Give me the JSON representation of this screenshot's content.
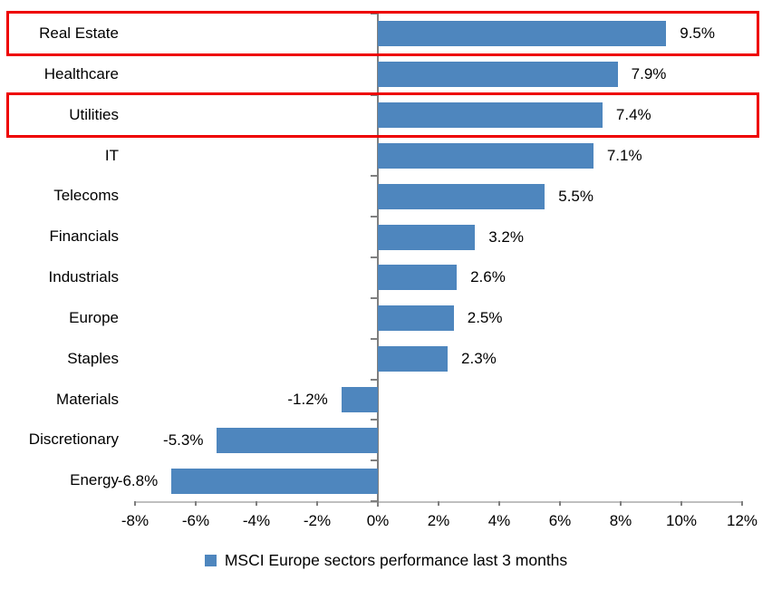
{
  "chart_data": {
    "type": "bar",
    "orientation": "horizontal",
    "title": "",
    "categories": [
      "Real Estate",
      "Healthcare",
      "Utilities",
      "IT",
      "Telecoms",
      "Financials",
      "Industrials",
      "Europe",
      "Staples",
      "Materials",
      "Discretionary",
      "Energy"
    ],
    "values": [
      9.5,
      7.9,
      7.4,
      7.1,
      5.5,
      3.2,
      2.6,
      2.5,
      2.3,
      -1.2,
      -5.3,
      -6.8
    ],
    "data_labels": [
      "9.5%",
      "7.9%",
      "7.4%",
      "7.1%",
      "5.5%",
      "3.2%",
      "2.6%",
      "2.5%",
      "2.3%",
      "-1.2%",
      "-5.3%",
      "-6.8%"
    ],
    "xlim": [
      -8,
      12
    ],
    "x_tick_step": 2,
    "x_tick_labels": [
      "-8%",
      "-6%",
      "-4%",
      "-2%",
      "0%",
      "2%",
      "4%",
      "6%",
      "8%",
      "10%",
      "12%"
    ],
    "grid": false,
    "legend": "MSCI Europe sectors performance last 3 months",
    "legend_position": "bottom-center",
    "highlighted_categories": [
      "Real Estate",
      "Utilities"
    ],
    "colors": {
      "bar": "#4E86BE",
      "highlight_border": "#EE0000",
      "axis": "#7F7F7F",
      "axis_baseline": "#BFBFBF",
      "text": "#000000",
      "background": "#FFFFFF"
    }
  }
}
